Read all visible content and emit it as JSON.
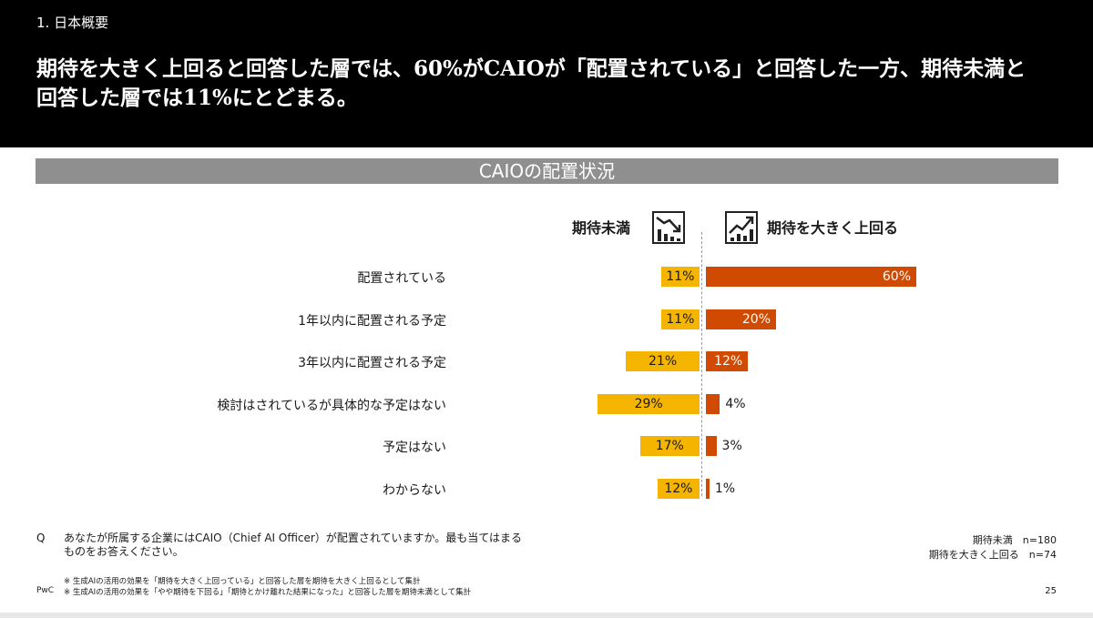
{
  "header": {
    "section": "1. 日本概要",
    "headline_line1": "期待を大きく上回ると回答した層では、60%がCAIOが「配置されている」と回答した一方、期待未満と",
    "headline_line2": "回答した層では11%にとどまる。"
  },
  "chart_data": {
    "type": "bar",
    "title": "CAIOの配置状況",
    "orientation": "horizontal-diverging",
    "categories": [
      "配置されている",
      "1年以内に配置される予定",
      "3年以内に配置される予定",
      "検討はされているが具体的な予定はない",
      "予定はない",
      "わからない"
    ],
    "series": [
      {
        "name": "期待未満",
        "values": [
          11,
          11,
          21,
          29,
          17,
          12
        ],
        "color": "#f5b400",
        "side": "left"
      },
      {
        "name": "期待を大きく上回る",
        "values": [
          60,
          20,
          12,
          4,
          3,
          1
        ],
        "color": "#d04a02",
        "side": "right"
      }
    ],
    "value_suffix": "%",
    "legend_icons": [
      "trend-down-icon",
      "trend-up-icon"
    ]
  },
  "footer": {
    "question_mark": "Q",
    "question": "あなたが所属する企業にはCAIO（Chief AI Officer）が配置されていますか。最も当てはまるものをお答えください。",
    "note_1": "※ 生成AIの活用の効果を「期待を大きく上回っている」と回答した層を期待を大きく上回るとして集計",
    "note_2": "※ 生成AIの活用の効果を「やや期待を下回る」「期待とかけ離れた結果になった」と回答した層を期待未満として集計",
    "brand": "PwC",
    "sample_1": "期待未満　n=180",
    "sample_2": "期待を大きく上回る　n=74",
    "page_number": "25"
  }
}
